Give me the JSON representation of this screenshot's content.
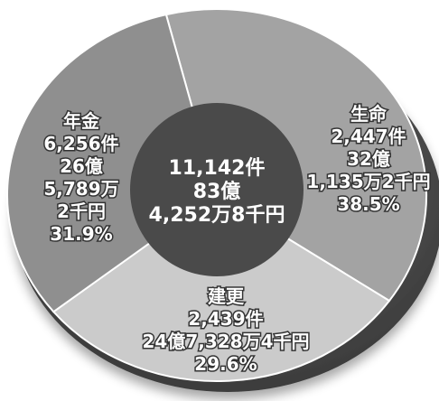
{
  "chart_data": {
    "type": "pie",
    "style": "3d-donut",
    "colors": {
      "seimei": "#a3a3a3",
      "kenko": "#cbcbcb",
      "nenkin": "#8f8f8f",
      "center": "#4a4a4a",
      "base": "#5a5a5a"
    },
    "slices": [
      {
        "name": "生命",
        "count": "2,447件",
        "amount_lines": [
          "32億",
          "1,135万2千円"
        ],
        "percent_label": "38.5%",
        "value": 38.5
      },
      {
        "name": "建更",
        "count": "2,439件",
        "amount_lines": [
          "24億7,328万4千円"
        ],
        "percent_label": "29.6%",
        "value": 29.6
      },
      {
        "name": "年金",
        "count": "6,256件",
        "amount_lines": [
          "26億",
          "5,789万",
          "2千円"
        ],
        "percent_label": "31.9%",
        "value": 31.9
      }
    ],
    "center": {
      "count": "11,142件",
      "amount_oku": "83億",
      "amount_rest": "4,252万8千円"
    }
  }
}
